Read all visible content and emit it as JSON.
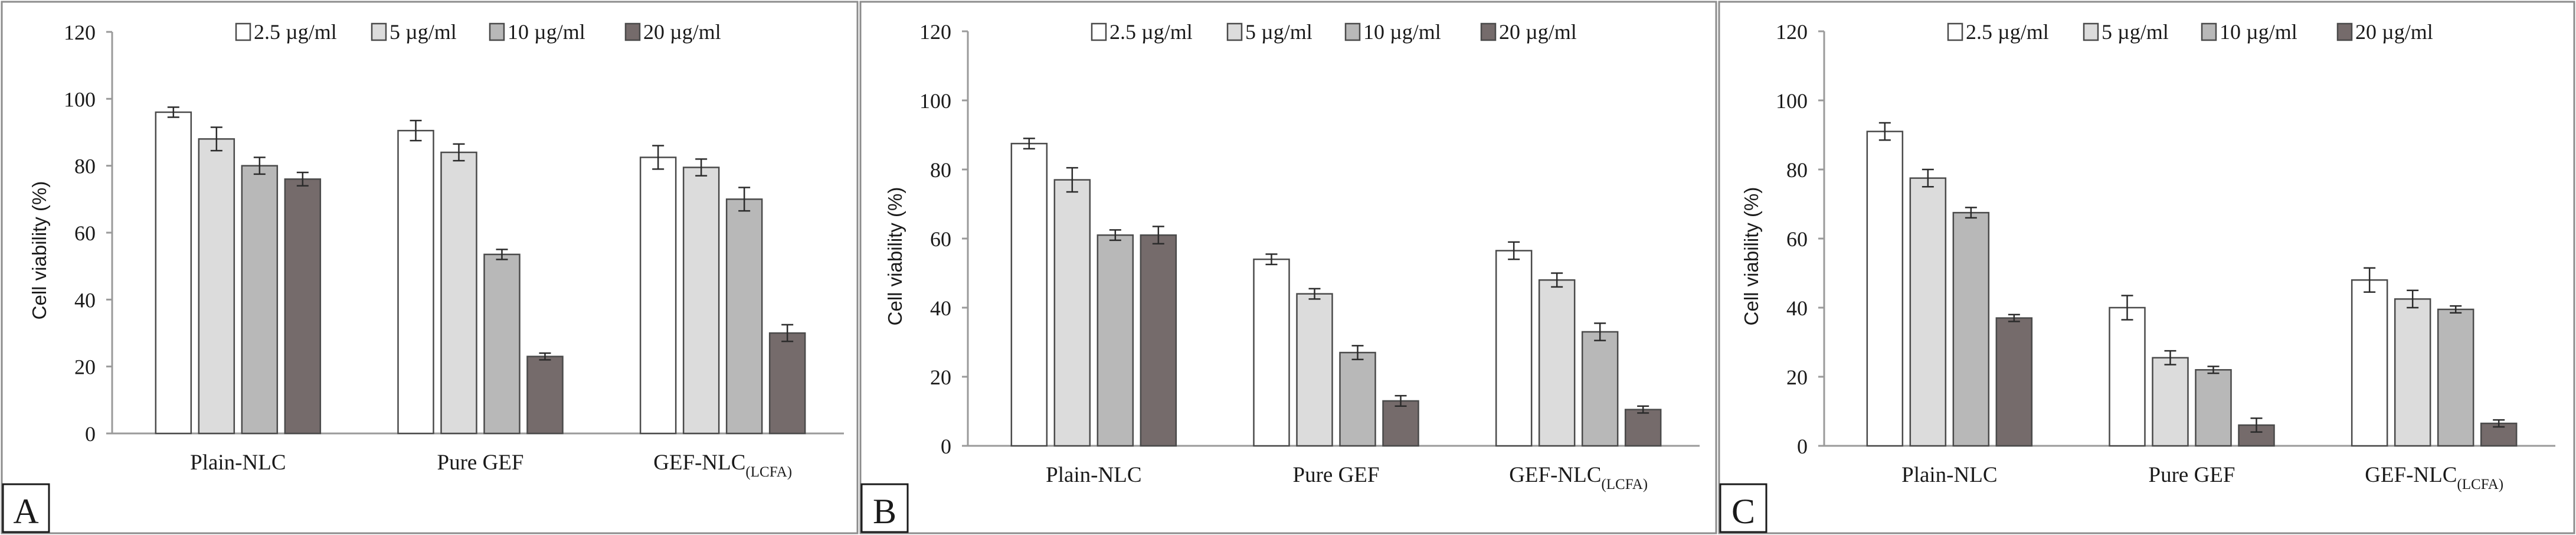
{
  "colors": {
    "series": [
      "#ffffff",
      "#dcdcdc",
      "#b8b8b8",
      "#756b6b"
    ],
    "bar_stroke": "#4a4a4a",
    "axis": "#9a9a9a",
    "panel_border": "#8c8c8c",
    "error_bar": "#2b2b2b"
  },
  "chart_data": [
    {
      "panel": "A",
      "type": "bar",
      "ylabel": "Cell viability (%)",
      "ylim": [
        0,
        120
      ],
      "yticks": [
        "0",
        "20",
        "40",
        "60",
        "80",
        "100",
        "120"
      ],
      "legend": [
        "2.5 µg/ml",
        "5 µg/ml",
        "10 µg/ml",
        "20 µg/ml"
      ],
      "categories": [
        {
          "main": "Plain-NLC",
          "sub": ""
        },
        {
          "main": "Pure GEF",
          "sub": ""
        },
        {
          "main": "GEF-NLC",
          "sub": "(LCFA)"
        }
      ],
      "series": [
        {
          "name": "2.5 µg/ml",
          "values": [
            96,
            90.5,
            82.5
          ],
          "errors": [
            1.5,
            3,
            3.5
          ]
        },
        {
          "name": "5 µg/ml",
          "values": [
            88,
            84,
            79.5
          ],
          "errors": [
            3.5,
            2.5,
            2.5
          ]
        },
        {
          "name": "10 µg/ml",
          "values": [
            80,
            53.5,
            70
          ],
          "errors": [
            2.5,
            1.5,
            3.5
          ]
        },
        {
          "name": "20 µg/ml",
          "values": [
            76,
            23,
            30
          ],
          "errors": [
            2,
            1,
            2.5
          ]
        }
      ]
    },
    {
      "panel": "B",
      "type": "bar",
      "ylabel": "Cell viability (%)",
      "ylim": [
        0,
        120
      ],
      "yticks": [
        "0",
        "20",
        "40",
        "60",
        "80",
        "100",
        "120"
      ],
      "legend": [
        "2.5 µg/ml",
        "5 µg/ml",
        "10 µg/ml",
        "20 µg/ml"
      ],
      "categories": [
        {
          "main": "Plain-NLC",
          "sub": ""
        },
        {
          "main": "Pure GEF",
          "sub": ""
        },
        {
          "main": "GEF-NLC",
          "sub": "(LCFA)"
        }
      ],
      "series": [
        {
          "name": "2.5 µg/ml",
          "values": [
            87.5,
            54,
            56.5
          ],
          "errors": [
            1.5,
            1.5,
            2.5
          ]
        },
        {
          "name": "5 µg/ml",
          "values": [
            77,
            44,
            48
          ],
          "errors": [
            3.5,
            1.5,
            2
          ]
        },
        {
          "name": "10 µg/ml",
          "values": [
            61,
            27,
            33
          ],
          "errors": [
            1.5,
            2,
            2.5
          ]
        },
        {
          "name": "20 µg/ml",
          "values": [
            61,
            13,
            10.5
          ],
          "errors": [
            2.5,
            1.5,
            1
          ]
        }
      ]
    },
    {
      "panel": "C",
      "type": "bar",
      "ylabel": "Cell viability (%)",
      "ylim": [
        0,
        120
      ],
      "yticks": [
        "0",
        "20",
        "40",
        "60",
        "80",
        "100",
        "120"
      ],
      "legend": [
        "2.5 µg/ml",
        "5 µg/ml",
        "10 µg/ml",
        "20 µg/ml"
      ],
      "categories": [
        {
          "main": "Plain-NLC",
          "sub": ""
        },
        {
          "main": "Pure GEF",
          "sub": ""
        },
        {
          "main": "GEF-NLC",
          "sub": "(LCFA)"
        }
      ],
      "series": [
        {
          "name": "2.5 µg/ml",
          "values": [
            91,
            40,
            48
          ],
          "errors": [
            2.5,
            3.5,
            3.5
          ]
        },
        {
          "name": "5 µg/ml",
          "values": [
            77.5,
            25.5,
            42.5
          ],
          "errors": [
            2.5,
            2,
            2.5
          ]
        },
        {
          "name": "10 µg/ml",
          "values": [
            67.5,
            22,
            39.5
          ],
          "errors": [
            1.5,
            1,
            1
          ]
        },
        {
          "name": "20 µg/ml",
          "values": [
            37,
            6,
            6.5
          ],
          "errors": [
            1,
            2,
            1
          ]
        }
      ]
    }
  ]
}
